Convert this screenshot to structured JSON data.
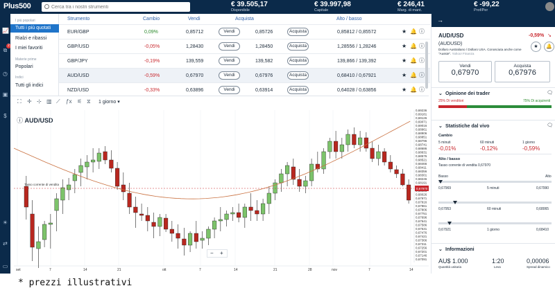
{
  "topbar": {
    "logo": "Plus500",
    "search_placeholder": "Cerca tra i nostri strumenti",
    "stats": [
      {
        "value": "€ 39.505,17",
        "label": "Disponibile"
      },
      {
        "value": "€ 39.997,98",
        "label": "Capitale"
      },
      {
        "value": "€ 246,41",
        "label": "Marg. di mant."
      },
      {
        "value": "€ -99,22",
        "label": "Prof/Per"
      }
    ]
  },
  "sidebar": {
    "cap1": "I più popolari",
    "items": [
      "Tutti i più quotati",
      "Rialzi e ribassi",
      "I miei favoriti"
    ],
    "cap2": "Materie prime",
    "item4": "Popolari",
    "cap3": "Indici",
    "item5": "Tutti gli indici"
  },
  "table": {
    "headers": [
      "Strumento",
      "Cambio",
      "Vendi",
      "Acquista",
      "Alto / basso"
    ],
    "sell_label": "Vendi",
    "buy_label": "Acquista",
    "rows": [
      {
        "name": "EUR/GBP",
        "change": "0,09%",
        "sell": "0,85712",
        "buy": "0,85726",
        "hl": "0,85812 / 0,85572",
        "up": true
      },
      {
        "name": "GBP/USD",
        "change": "-0,05%",
        "sell": "1,28430",
        "buy": "1,28450",
        "hl": "1,28556 / 1,28246",
        "up": false
      },
      {
        "name": "GBP/JPY",
        "change": "-0,19%",
        "sell": "139,559",
        "buy": "139,582",
        "hl": "139,866 / 139,392",
        "up": false
      },
      {
        "name": "AUD/USD",
        "change": "-0,59%",
        "sell": "0,67970",
        "buy": "0,67976",
        "hl": "0,68410 / 0,67921",
        "up": false
      },
      {
        "name": "NZD/USD",
        "change": "-0,33%",
        "sell": "0,63896",
        "buy": "0,63914",
        "hl": "0,64028 / 0,63856",
        "up": false
      }
    ]
  },
  "chart": {
    "timeframe": "1 giorno",
    "symbol": "AUD/USD",
    "annotation": "Tasso corrente di vendita",
    "price_label": "0,67970",
    "yticks": [
      "0,69236",
      "0,69181",
      "0,69126",
      "0,69071",
      "0,69016",
      "0,68961",
      "0,68906",
      "0,68851",
      "0,68796",
      "0,68741",
      "0,68686",
      "0,68631",
      "0,68576",
      "0,68521",
      "0,68466",
      "0,68411",
      "0,68356",
      "0,68301",
      "0,68246",
      "0,68191",
      "0,68136",
      "0,68081",
      "0,68026",
      "0,67971",
      "0,67916",
      "0,67861",
      "0,67806",
      "0,67751",
      "0,67696",
      "0,67641",
      "0,67586",
      "0,67531",
      "0,67476",
      "0,67421",
      "0,67366",
      "0,67311",
      "0,67256",
      "0,67201",
      "0,67146",
      "0,67091"
    ],
    "xticks": [
      "set",
      "7",
      "14",
      "21",
      "ott",
      "7",
      "14",
      "21",
      "28",
      "nov",
      "7",
      "14"
    ],
    "zoom_minus": "−",
    "zoom_plus": "+"
  },
  "panel": {
    "symbol": "AUD/USD",
    "change": "-0,59%",
    "code": "(AUDUSD)",
    "desc": "Dollaro Australiano / Dollaro USA. Conosciuta anche come \"Aussie\".",
    "source": "Yahoo! Finanza",
    "sell_label": "Vendi",
    "sell_price": "0,67970",
    "buy_label": "Acquista",
    "buy_price": "0,67976",
    "opinion_title": "Opinione dei trader",
    "sellers": "25% Di venditori",
    "buyers": "75% Di acquirenti",
    "sellers_pct": 25,
    "live_title": "Statistiche dal vivo",
    "change_title": "Cambio",
    "changes": [
      {
        "label": "5 minuti",
        "value": "-0,01%"
      },
      {
        "label": "60 minuti",
        "value": "-0,12%"
      },
      {
        "label": "1 giorno",
        "value": "-0,59%"
      }
    ],
    "hl_title": "Alto / basso",
    "hl_sub": "Tasso corrente di vendita 0,67970",
    "low": "Basso",
    "high": "Alto",
    "ranges": [
      {
        "low": "0,67969",
        "label": "5 minuti",
        "high": "0,67990",
        "pos": 0.02
      },
      {
        "low": "0,67953",
        "label": "60 minuti",
        "high": "0,68065",
        "pos": 0.15
      },
      {
        "low": "0,67921",
        "label": "1 giorno",
        "high": "0,68410",
        "pos": 0.1
      }
    ],
    "info_title": "Informazioni",
    "info": [
      {
        "value": "AU$ 1.000",
        "label": "Quantità unitaria"
      },
      {
        "value": "1:20",
        "label": "Leva"
      },
      {
        "value": "0,00006",
        "label": "Spread dinamico"
      }
    ]
  },
  "footer": "* prezzi illustrativi",
  "colors": {
    "navy": "#0b2a4a",
    "up": "#7cc36a",
    "down": "#b8271f",
    "ma": "#c9703f"
  }
}
